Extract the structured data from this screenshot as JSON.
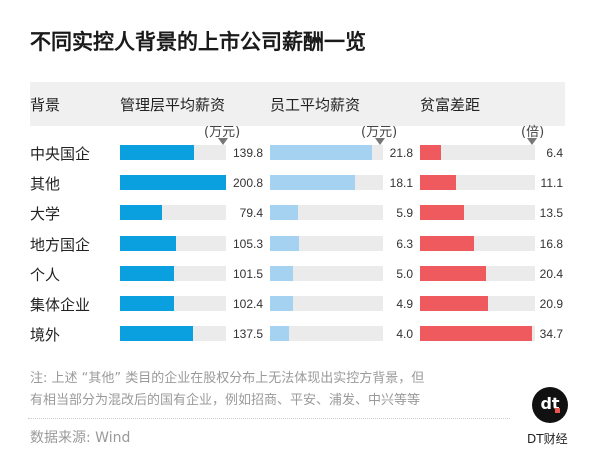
{
  "title": "不同实控人背景的上市公司薪酬一览",
  "chart_data": {
    "type": "bar",
    "title": "不同实控人背景的上市公司薪酬一览",
    "header": {
      "category": "背景"
    },
    "categories": [
      "中央国企",
      "其他",
      "大学",
      "地方国企",
      "个人",
      "集体企业",
      "境外"
    ],
    "series": [
      {
        "name": "管理层平均薪资",
        "unit": "(万元)",
        "color": "#0aa0e0",
        "values": [
          139.8,
          200.8,
          79.4,
          105.3,
          101.5,
          102.4,
          137.5
        ]
      },
      {
        "name": "员工平均薪资",
        "unit": "(万元)",
        "color": "#a6d2f2",
        "values": [
          21.8,
          18.1,
          5.9,
          6.3,
          5.0,
          4.9,
          4.0
        ]
      },
      {
        "name": "贫富差距",
        "unit": "(倍)",
        "color": "#ef5a5e",
        "values": [
          6.4,
          11.1,
          13.5,
          16.8,
          20.4,
          20.9,
          34.7
        ]
      }
    ],
    "value_labels": [
      [
        "139.8",
        "200.8",
        "79.4",
        "105.3",
        "101.5",
        "102.4",
        "137.5"
      ],
      [
        "21.8",
        "18.1",
        "5.9",
        "6.3",
        "5.0",
        "4.9",
        "4.0"
      ],
      [
        "6.4",
        "11.1",
        "13.5",
        "16.8",
        "20.4",
        "20.9",
        "34.7"
      ]
    ]
  },
  "notes": {
    "line1": "注: 上述 “其他” 类目的企业在股权分布上无法体现出实控方背景，但",
    "line2": "有相当部分为混改后的国有企业，例如招商、平安、浦发、中兴等等",
    "source": "数据来源: Wind"
  },
  "logo": {
    "mark": "dt",
    "text": "DT财经"
  }
}
